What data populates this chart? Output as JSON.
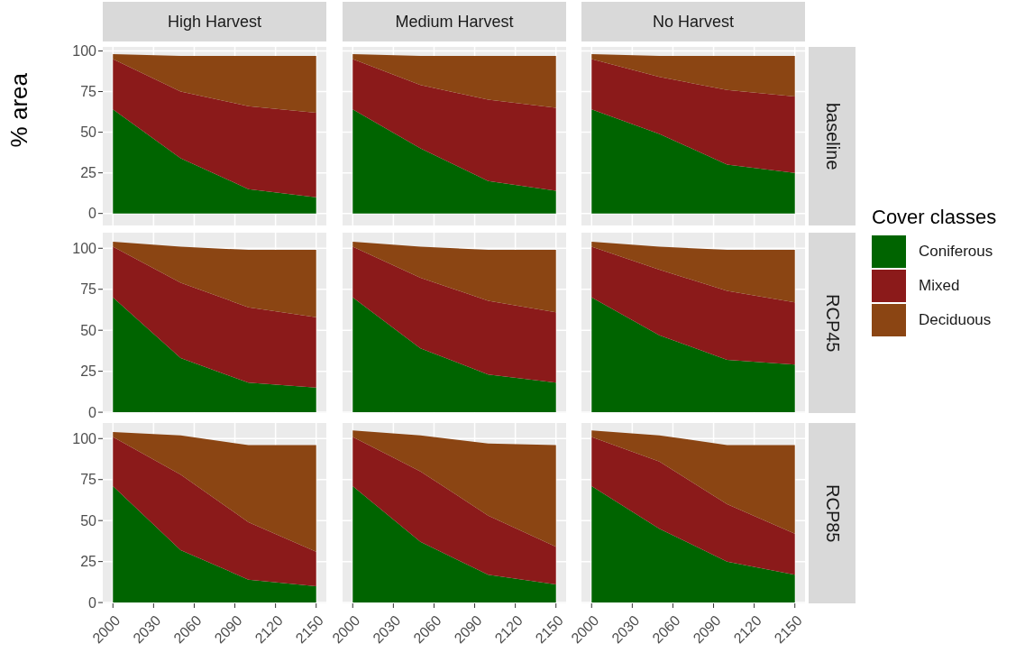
{
  "chart_data": [
    {
      "type": "area",
      "title": "High Harvest",
      "ylabel": "% area",
      "x": [
        2000,
        2050,
        2100,
        2150
      ],
      "stacked": true,
      "xlim": [
        1992.5,
        2157.5
      ],
      "xticks": [
        2000,
        2030,
        2060,
        2090,
        2120,
        2150
      ],
      "ylim": [
        -7.4,
        102.5
      ],
      "yticks": [
        0,
        25,
        50,
        75,
        100
      ],
      "grid": true,
      "tick_labels": "y",
      "series": [
        {
          "color": "#006400",
          "values": [
            64,
            34,
            15,
            10
          ]
        },
        {
          "color": "#8b1a1a",
          "values": [
            31,
            41,
            51,
            52
          ]
        },
        {
          "color": "#8b4513",
          "values": [
            3,
            22,
            31,
            35
          ]
        }
      ]
    },
    {
      "type": "area",
      "title": "Medium Harvest",
      "x": [
        2000,
        2050,
        2100,
        2150
      ],
      "stacked": true,
      "xlim": [
        1992.5,
        2157.5
      ],
      "xticks": [
        2000,
        2030,
        2060,
        2090,
        2120,
        2150
      ],
      "ylim": [
        -7.4,
        102.5
      ],
      "yticks": [
        0,
        25,
        50,
        75,
        100
      ],
      "grid": true,
      "tick_labels": false,
      "series": [
        {
          "color": "#006400",
          "values": [
            64,
            40,
            20,
            14
          ]
        },
        {
          "color": "#8b1a1a",
          "values": [
            31,
            39,
            50,
            51
          ]
        },
        {
          "color": "#8b4513",
          "values": [
            3,
            18,
            27,
            32
          ]
        }
      ]
    },
    {
      "type": "area",
      "title": "No Harvest",
      "y2label": "baseline",
      "x": [
        2000,
        2050,
        2100,
        2150
      ],
      "stacked": true,
      "xlim": [
        1992.5,
        2157.5
      ],
      "xticks": [
        2000,
        2030,
        2060,
        2090,
        2120,
        2150
      ],
      "ylim": [
        -7.4,
        102.5
      ],
      "yticks": [
        0,
        25,
        50,
        75,
        100
      ],
      "grid": true,
      "tick_labels": false,
      "series": [
        {
          "color": "#006400",
          "values": [
            64,
            49,
            30,
            25
          ]
        },
        {
          "color": "#8b1a1a",
          "values": [
            31,
            35,
            46,
            47
          ]
        },
        {
          "color": "#8b4513",
          "values": [
            3,
            13,
            21,
            25
          ]
        }
      ]
    },
    {
      "type": "area",
      "x": [
        2000,
        2050,
        2100,
        2150
      ],
      "stacked": true,
      "xlim": [
        1992.5,
        2157.5
      ],
      "xticks": [
        2000,
        2030,
        2060,
        2090,
        2120,
        2150
      ],
      "ylim": [
        -0.5,
        109.5
      ],
      "yticks": [
        0,
        25,
        50,
        75,
        100
      ],
      "grid": true,
      "tick_labels": "y",
      "series": [
        {
          "color": "#006400",
          "values": [
            70,
            33,
            18,
            15
          ]
        },
        {
          "color": "#8b1a1a",
          "values": [
            31,
            46,
            46,
            43
          ]
        },
        {
          "color": "#8b4513",
          "values": [
            3,
            22,
            35,
            41
          ]
        }
      ]
    },
    {
      "type": "area",
      "x": [
        2000,
        2050,
        2100,
        2150
      ],
      "stacked": true,
      "xlim": [
        1992.5,
        2157.5
      ],
      "xticks": [
        2000,
        2030,
        2060,
        2090,
        2120,
        2150
      ],
      "ylim": [
        -0.5,
        109.5
      ],
      "yticks": [
        0,
        25,
        50,
        75,
        100
      ],
      "grid": true,
      "tick_labels": false,
      "series": [
        {
          "color": "#006400",
          "values": [
            70,
            39,
            23,
            18
          ]
        },
        {
          "color": "#8b1a1a",
          "values": [
            31,
            43,
            45,
            43
          ]
        },
        {
          "color": "#8b4513",
          "values": [
            3,
            19,
            31,
            38
          ]
        }
      ]
    },
    {
      "type": "area",
      "y2label": "RCP45",
      "legend": "right",
      "legend_title": "Cover classes",
      "x": [
        2000,
        2050,
        2100,
        2150
      ],
      "stacked": true,
      "xlim": [
        1992.5,
        2157.5
      ],
      "xticks": [
        2000,
        2030,
        2060,
        2090,
        2120,
        2150
      ],
      "ylim": [
        -0.5,
        109.5
      ],
      "yticks": [
        0,
        25,
        50,
        75,
        100
      ],
      "grid": true,
      "tick_labels": false,
      "series": [
        {
          "name": "Coniferous",
          "color": "#006400",
          "values": [
            70,
            47,
            32,
            29
          ]
        },
        {
          "name": "Mixed",
          "color": "#8b1a1a",
          "values": [
            31,
            40,
            42,
            38
          ]
        },
        {
          "name": "Deciduous",
          "color": "#8b4513",
          "values": [
            3,
            14,
            25,
            32
          ]
        }
      ]
    },
    {
      "type": "area",
      "x": [
        2000,
        2050,
        2100,
        2150
      ],
      "stacked": true,
      "xlim": [
        1992.5,
        2157.5
      ],
      "xticks": [
        2000,
        2030,
        2060,
        2090,
        2120,
        2150
      ],
      "ylim": [
        -0.5,
        109.5
      ],
      "yticks": [
        0,
        25,
        50,
        75,
        100
      ],
      "grid": true,
      "series": [
        {
          "color": "#006400",
          "values": [
            71,
            32,
            14,
            10
          ]
        },
        {
          "color": "#8b1a1a",
          "values": [
            30,
            46,
            35,
            21
          ]
        },
        {
          "color": "#8b4513",
          "values": [
            3,
            24,
            47,
            65
          ]
        }
      ]
    },
    {
      "type": "area",
      "x": [
        2000,
        2050,
        2100,
        2150
      ],
      "stacked": true,
      "xlim": [
        1992.5,
        2157.5
      ],
      "xticks": [
        2000,
        2030,
        2060,
        2090,
        2120,
        2150
      ],
      "ylim": [
        -0.5,
        109.5
      ],
      "yticks": [
        0,
        25,
        50,
        75,
        100
      ],
      "grid": true,
      "tick_labels": "x",
      "series": [
        {
          "color": "#006400",
          "values": [
            71,
            37,
            17,
            11
          ]
        },
        {
          "color": "#8b1a1a",
          "values": [
            30,
            43,
            36,
            23
          ]
        },
        {
          "color": "#8b4513",
          "values": [
            4,
            22,
            44,
            62
          ]
        }
      ]
    },
    {
      "type": "area",
      "y2label": "RCP85",
      "x": [
        2000,
        2050,
        2100,
        2150
      ],
      "stacked": true,
      "xlim": [
        1992.5,
        2157.5
      ],
      "xticks": [
        2000,
        2030,
        2060,
        2090,
        2120,
        2150
      ],
      "ylim": [
        -0.5,
        109.5
      ],
      "yticks": [
        0,
        25,
        50,
        75,
        100
      ],
      "grid": true,
      "tick_labels": "x",
      "series": [
        {
          "color": "#006400",
          "values": [
            71,
            45,
            25,
            17
          ]
        },
        {
          "color": "#8b1a1a",
          "values": [
            30,
            41,
            35,
            25
          ]
        },
        {
          "color": "#8b4513",
          "values": [
            4,
            16,
            36,
            54
          ]
        }
      ]
    }
  ]
}
